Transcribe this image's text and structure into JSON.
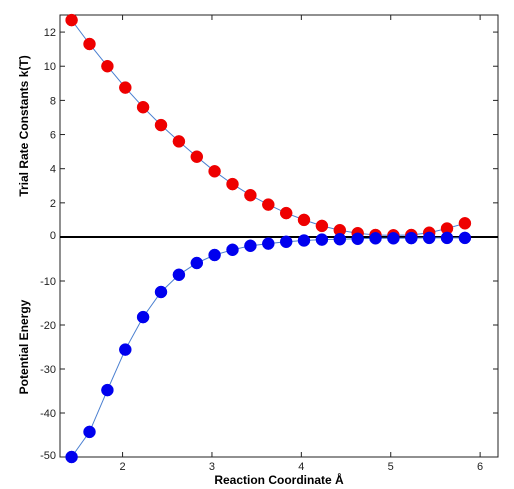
{
  "chart_data": [
    {
      "type": "scatter",
      "panel": "top",
      "title": "",
      "ylabel": "Trial Rate Constants k(T)",
      "xlim": [
        1.3,
        6.2
      ],
      "ylim": [
        0,
        13
      ],
      "yticks": [
        0,
        2,
        4,
        6,
        8,
        10,
        12
      ],
      "x": [
        1.43,
        1.63,
        1.83,
        2.03,
        2.23,
        2.43,
        2.63,
        2.83,
        3.03,
        3.23,
        3.43,
        3.63,
        3.83,
        4.03,
        4.23,
        4.43,
        4.63,
        4.83,
        5.03,
        5.23,
        5.43,
        5.63,
        5.83
      ],
      "series": [
        {
          "values": [
            12.7,
            11.3,
            10.0,
            8.75,
            7.6,
            6.55,
            5.6,
            4.7,
            3.85,
            3.1,
            2.45,
            1.9,
            1.4,
            1.0,
            0.65,
            0.4,
            0.22,
            0.12,
            0.1,
            0.12,
            0.25,
            0.5,
            0.8
          ],
          "color": "#ee0000",
          "line_color": "#4a7fd0"
        }
      ]
    },
    {
      "type": "scatter",
      "panel": "bottom",
      "title": "",
      "xlabel": "Reaction Coordinate Å",
      "ylabel": "Potential Energy",
      "xlim": [
        1.3,
        6.2
      ],
      "ylim": [
        -50,
        0
      ],
      "xticks": [
        2,
        3,
        4,
        5,
        6
      ],
      "yticks": [
        -50,
        -40,
        -30,
        -20,
        -10,
        0
      ],
      "x": [
        1.43,
        1.63,
        1.83,
        2.03,
        2.23,
        2.43,
        2.63,
        2.83,
        3.03,
        3.23,
        3.43,
        3.63,
        3.83,
        4.03,
        4.23,
        4.43,
        4.63,
        4.83,
        5.03,
        5.23,
        5.43,
        5.63,
        5.83
      ],
      "series": [
        {
          "values": [
            -50.0,
            -44.3,
            -34.8,
            -25.6,
            -18.2,
            -12.5,
            -8.6,
            -5.9,
            -4.1,
            -2.9,
            -2.0,
            -1.5,
            -1.1,
            -0.8,
            -0.6,
            -0.5,
            -0.4,
            -0.3,
            -0.3,
            -0.25,
            -0.2,
            -0.2,
            -0.2
          ],
          "color": "#0000ee",
          "line_color": "#4a7fd0"
        }
      ]
    }
  ]
}
